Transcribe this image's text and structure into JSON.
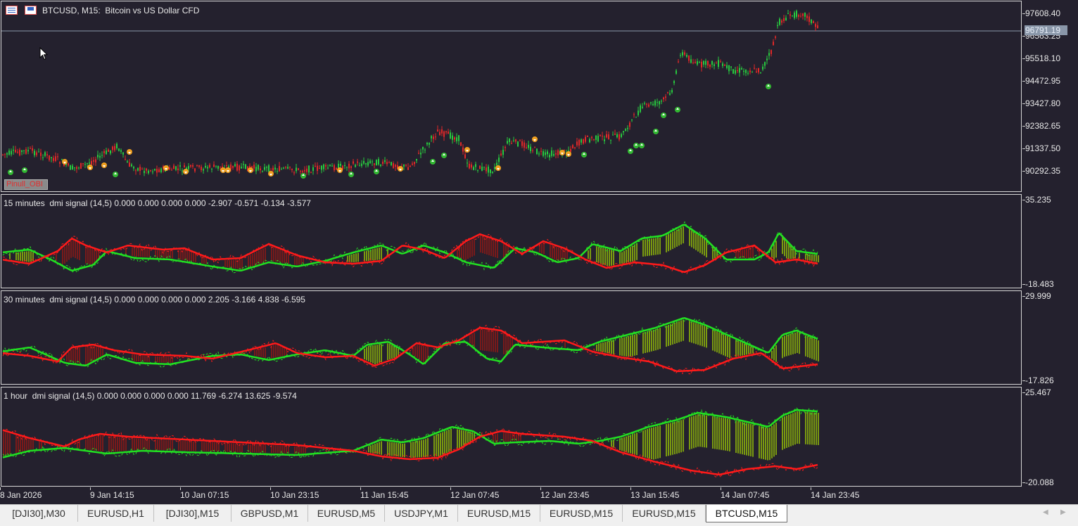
{
  "main_chart": {
    "title": "BTCUSD, M15:  Bitcoin vs US Dollar CFD",
    "trade_label": "Pinull_OBI",
    "current_price": "96791.19",
    "price_ticks": [
      "97608.40",
      "96563.25",
      "95518.10",
      "94472.95",
      "93427.80",
      "92382.65",
      "91337.50",
      "90292.35"
    ],
    "icons": [
      "table-icon",
      "save-icon",
      "cursor-arrow-icon"
    ]
  },
  "indicators": [
    {
      "title": "15 minutes  dmi signal (14,5) 0.000 0.000 0.000 0.000 -2.907 -0.571 -0.134 -3.577",
      "max": "35.235",
      "min": "-18.483"
    },
    {
      "title": "30 minutes  dmi signal (14,5) 0.000 0.000 0.000 0.000 2.205 -3.166 4.838 -6.595",
      "max": "29.999",
      "min": "-17.826"
    },
    {
      "title": "1 hour  dmi signal (14,5) 0.000 0.000 0.000 0.000 11.769 -6.274 13.625 -9.574",
      "max": "25.467",
      "min": "-20.088"
    }
  ],
  "time_axis": [
    "8 Jan 2026",
    "9 Jan 14:15",
    "10 Jan 07:15",
    "10 Jan 23:15",
    "11 Jan 15:45",
    "12 Jan 07:45",
    "12 Jan 23:45",
    "13 Jan 15:45",
    "14 Jan 07:45",
    "14 Jan 23:45"
  ],
  "tabs": [
    "[DJI30],M30",
    "EURUSD,H1",
    "[DJI30],M15",
    "GBPUSD,M1",
    "EURUSD,M5",
    "USDJPY,M1",
    "EURUSD,M15",
    "EURUSD,M15",
    "EURUSD,M15",
    "BTCUSD,M15"
  ],
  "active_tab": 9,
  "colors": {
    "background": "#24212e",
    "bull": "#27c93f",
    "bear": "#e02828",
    "line_green": "#22e022",
    "line_red": "#ff1a1a",
    "hist_green": "#7a9a10",
    "hist_red": "#7a1a1a",
    "arrow_up": "#32b832",
    "arrow_down": "#f0a020"
  }
}
